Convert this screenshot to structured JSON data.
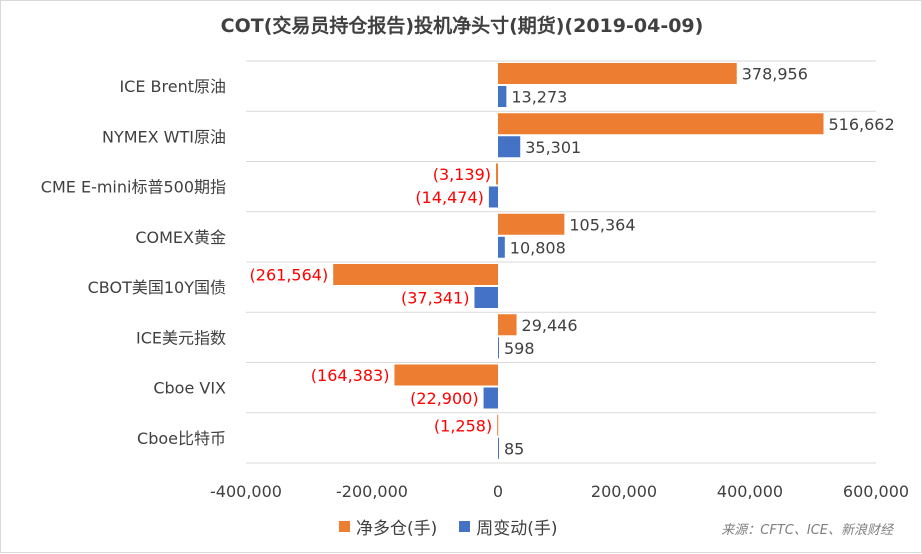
{
  "chart_data": {
    "type": "bar",
    "orientation": "horizontal",
    "title": "COT(交易员持仓报告)投机净头寸(期货)(2019-04-09)",
    "categories": [
      "ICE Brent原油",
      "NYMEX WTI原油",
      "CME E-mini标普500期指",
      "COMEX黄金",
      "CBOT美国10Y国债",
      "ICE美元指数",
      "Cboe VIX",
      "Cboe比特币"
    ],
    "series": [
      {
        "name": "净多仓(手)",
        "color": "#ed7d31",
        "values": [
          378956,
          516662,
          -3139,
          105364,
          -261564,
          29446,
          -164383,
          -1258
        ],
        "labels": [
          "378,956",
          "516,662",
          "(3,139)",
          "105,364",
          "(261,564)",
          "29,446",
          "(164,383)",
          "(1,258)"
        ]
      },
      {
        "name": "周变动(手)",
        "color": "#4472c4",
        "values": [
          13273,
          35301,
          -14474,
          10808,
          -37341,
          598,
          -22900,
          85
        ],
        "labels": [
          "13,273",
          "35,301",
          "(14,474)",
          "10,808",
          "(37,341)",
          "598",
          "(22,900)",
          "85"
        ]
      }
    ],
    "xlim": [
      -400000,
      600000
    ],
    "xticks": [
      -400000,
      -200000,
      0,
      200000,
      400000,
      600000
    ],
    "xtick_labels": [
      "-400,000",
      "-200,000",
      "0",
      "200,000",
      "400,000",
      "600,000"
    ],
    "grid": "horizontal separators",
    "legend": "bottom",
    "negative_label_color": "#ff0000",
    "positive_label_color": "#404040",
    "gridline_color": "#d9d9d9"
  },
  "source_note": "来源：CFTC、ICE、新浪财经"
}
